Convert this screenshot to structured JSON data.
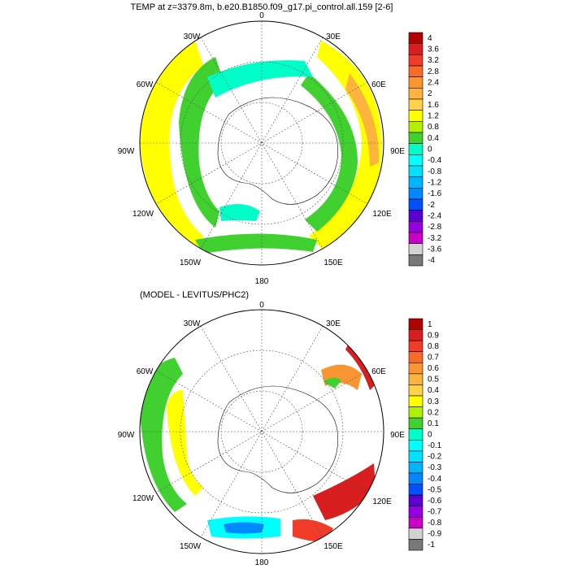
{
  "figure": {
    "panels": [
      {
        "id": "top",
        "title": "TEMP at z=3379.8m, b.e20.B1850.f09_g17.pi_control.all.159 [2-6]",
        "longitude_labels": [
          "0",
          "30E",
          "60E",
          "90E",
          "120E",
          "150E",
          "180",
          "150W",
          "120W",
          "90W",
          "60W",
          "30W"
        ],
        "colorbar": {
          "labels": [
            "4",
            "3.6",
            "3.2",
            "2.8",
            "2.4",
            "2",
            "1.6",
            "1.2",
            "0.8",
            "0.4",
            "0",
            "-0.4",
            "-0.8",
            "-1.2",
            "-1.6",
            "-2",
            "-2.4",
            "-2.8",
            "-3.2",
            "-3.6",
            "-4"
          ],
          "colors": [
            "#b00000",
            "#d81e1e",
            "#f03c28",
            "#f86a28",
            "#fa9632",
            "#fcb43c",
            "#fed24a",
            "#ffff00",
            "#b0f000",
            "#40d030",
            "#00ffc8",
            "#00ffff",
            "#00e0ff",
            "#00b4ff",
            "#0088ff",
            "#0050ff",
            "#5a00d0",
            "#9600e0",
            "#c800c8",
            "#d2d2d2",
            "#787878"
          ]
        }
      },
      {
        "id": "bottom",
        "title": "(MODEL - LEVITUS/PHC2)",
        "longitude_labels": [
          "0",
          "30E",
          "60E",
          "90E",
          "120E",
          "150E",
          "180",
          "150W",
          "120W",
          "90W",
          "60W",
          "30W"
        ],
        "colorbar": {
          "labels": [
            "1",
            "0.9",
            "0.8",
            "0.7",
            "0.6",
            "0.5",
            "0.4",
            "0.3",
            "0.2",
            "0.1",
            "0",
            "-0.1",
            "-0.2",
            "-0.3",
            "-0.4",
            "-0.5",
            "-0.6",
            "-0.7",
            "-0.8",
            "-0.9",
            "-1"
          ],
          "colors": [
            "#b00000",
            "#d81e1e",
            "#f03c28",
            "#f86a28",
            "#fa9632",
            "#fcb43c",
            "#fed24a",
            "#ffff00",
            "#b0f000",
            "#40d030",
            "#00ffc8",
            "#00ffff",
            "#00e0ff",
            "#00b4ff",
            "#0088ff",
            "#0050ff",
            "#5a00d0",
            "#9600e0",
            "#c800c8",
            "#d2d2d2",
            "#787878"
          ]
        }
      }
    ]
  }
}
